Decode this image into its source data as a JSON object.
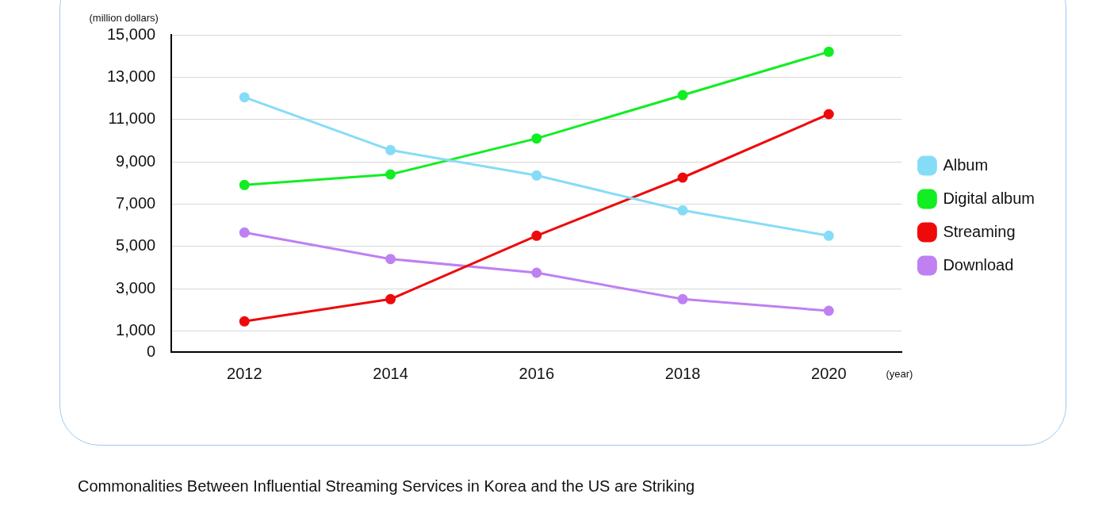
{
  "chart_data": {
    "type": "line",
    "ylabel": "(million dollars)",
    "xlabel": "(year)",
    "categories": [
      "2012",
      "2014",
      "2016",
      "2018",
      "2020"
    ],
    "series": [
      {
        "name": "Album",
        "color": "#86dcf7",
        "values": [
          12050,
          9550,
          8350,
          6700,
          5500
        ]
      },
      {
        "name": "Digital album",
        "color": "#11ee22",
        "values": [
          7900,
          8400,
          10100,
          12150,
          14200
        ]
      },
      {
        "name": "Streaming",
        "color": "#ee0a0a",
        "values": [
          1450,
          2500,
          5500,
          8250,
          11250
        ]
      },
      {
        "name": "Download",
        "color": "#bf80f2",
        "values": [
          5650,
          4400,
          3750,
          2500,
          1950
        ]
      }
    ],
    "ylim": [
      0,
      15000
    ],
    "yticks": [
      {
        "value": 0,
        "label": "0"
      },
      {
        "value": 1000,
        "label": "1,000"
      },
      {
        "value": 3000,
        "label": "3,000"
      },
      {
        "value": 5000,
        "label": "5,000"
      },
      {
        "value": 7000,
        "label": "7,000"
      },
      {
        "value": 9000,
        "label": "9,000"
      },
      {
        "value": 11000,
        "label": "11,000"
      },
      {
        "value": 13000,
        "label": "13,000"
      },
      {
        "value": 15000,
        "label": "15,000"
      }
    ],
    "grid": "y",
    "legend": "right",
    "marker": "circle",
    "line_style": "solid",
    "annotations": [
      "Commonalities Between Influential Streaming Services in Korea and the US are Striking"
    ]
  }
}
